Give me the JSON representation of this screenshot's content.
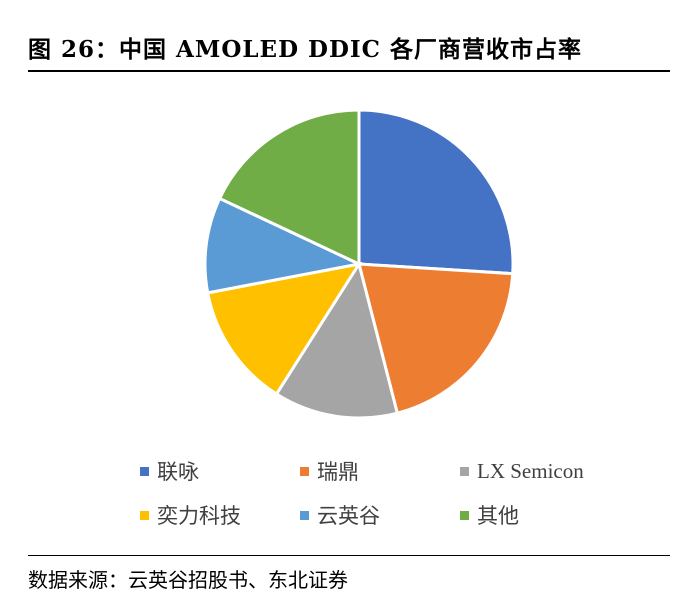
{
  "title": "图 26：中国 AMOLED DDIC 各厂商营收市占率",
  "source": "数据来源：云英谷招股书、东北证券",
  "chart_data": {
    "type": "pie",
    "labels": [
      "联咏",
      "瑞鼎",
      "LX Semicon",
      "奕力科技",
      "云英谷",
      "其他"
    ],
    "values": [
      26,
      20,
      13,
      13,
      10,
      18
    ],
    "colors": [
      "#4472C4",
      "#ED7D31",
      "#A5A5A5",
      "#FFC000",
      "#5B9BD5",
      "#70AD47"
    ],
    "start_angle": "12 o'clock",
    "direction": "clockwise",
    "legend_position": "bottom"
  }
}
